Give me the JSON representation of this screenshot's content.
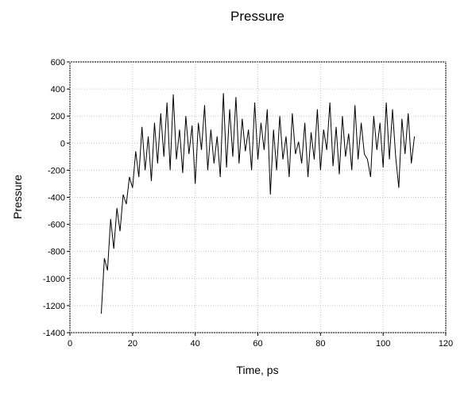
{
  "chart_data": {
    "type": "line",
    "title": "Pressure",
    "x_label": "Time, ps",
    "y_label": "Pressure",
    "x": [
      10,
      11,
      12,
      13,
      14,
      15,
      16,
      17,
      18,
      19,
      20,
      21,
      22,
      23,
      24,
      25,
      26,
      27,
      28,
      29,
      30,
      31,
      32,
      33,
      34,
      35,
      36,
      37,
      38,
      39,
      40,
      41,
      42,
      43,
      44,
      45,
      46,
      47,
      48,
      49,
      50,
      51,
      52,
      53,
      54,
      55,
      56,
      57,
      58,
      59,
      60,
      61,
      62,
      63,
      64,
      65,
      66,
      67,
      68,
      69,
      70,
      71,
      72,
      73,
      74,
      75,
      76,
      77,
      78,
      79,
      80,
      81,
      82,
      83,
      84,
      85,
      86,
      87,
      88,
      89,
      90,
      91,
      92,
      93,
      94,
      95,
      96,
      97,
      98,
      99,
      100,
      101,
      102,
      103,
      104,
      105,
      106,
      107,
      108,
      109,
      110
    ],
    "series": [
      {
        "name": "Pressure",
        "color": "#000000",
        "values": [
          -1260,
          -850,
          -940,
          -560,
          -780,
          -480,
          -650,
          -380,
          -450,
          -250,
          -330,
          -60,
          -250,
          120,
          -200,
          50,
          -280,
          150,
          -150,
          220,
          -100,
          300,
          -200,
          360,
          -120,
          100,
          -220,
          200,
          -80,
          130,
          -300,
          150,
          -50,
          280,
          -200,
          100,
          -150,
          50,
          -250,
          370,
          -180,
          250,
          -100,
          340,
          -150,
          180,
          -60,
          100,
          -200,
          300,
          -120,
          150,
          -50,
          250,
          -380,
          100,
          -200,
          200,
          -120,
          50,
          -250,
          220,
          -80,
          10,
          -150,
          150,
          -250,
          80,
          -120,
          250,
          -200,
          100,
          -50,
          300,
          -170,
          120,
          -230,
          200,
          -100,
          70,
          -200,
          280,
          -120,
          150,
          -80,
          -120,
          -250,
          200,
          -50,
          150,
          -180,
          300,
          -120,
          250,
          -100,
          -330,
          180,
          -80,
          220,
          -150,
          50
        ]
      }
    ],
    "xlim": [
      0,
      120
    ],
    "xticks": [
      0,
      20,
      40,
      60,
      80,
      100,
      120
    ],
    "ylim": [
      -1400,
      600
    ],
    "yticks": [
      -1400,
      -1200,
      -1000,
      -800,
      -600,
      -400,
      -200,
      0,
      200,
      400,
      600
    ],
    "grid": true
  }
}
